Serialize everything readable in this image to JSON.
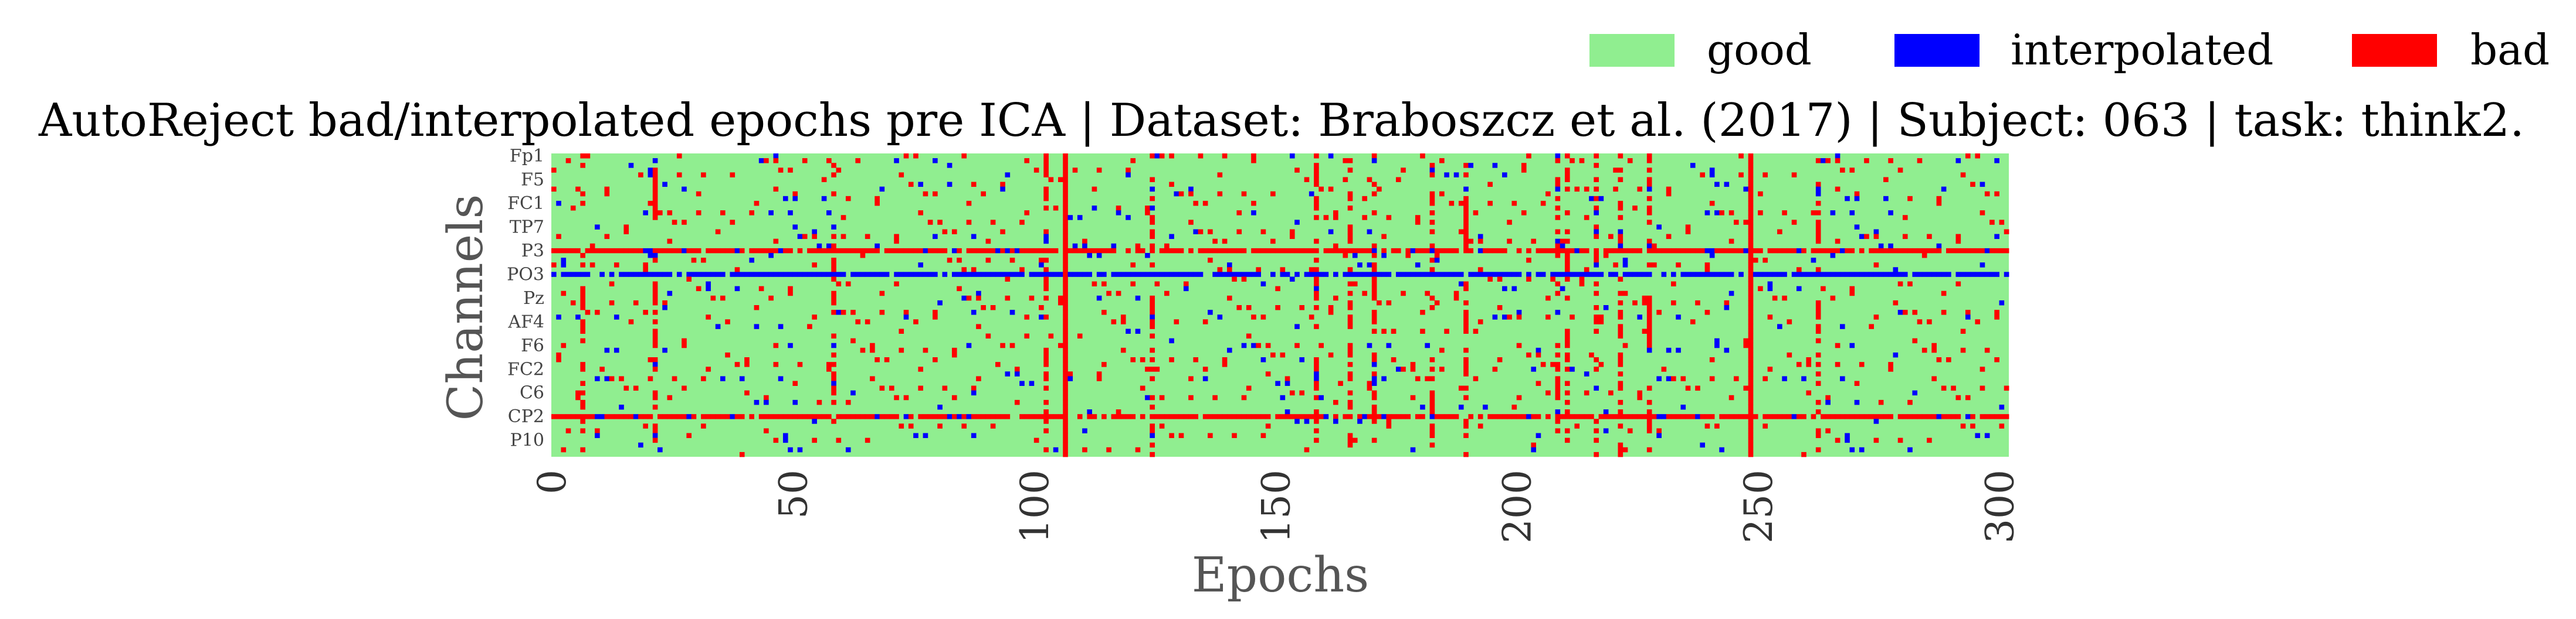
{
  "chart_data": {
    "type": "heatmap",
    "title": "AutoReject bad/interpolated epochs pre ICA | Dataset: Braboszcz et al. (2017) | Subject: 063 | task: think2.",
    "xlabel": "Epochs",
    "ylabel": "Channels",
    "xlim": [
      0,
      302
    ],
    "n_epochs": 302,
    "x_ticks": [
      0,
      50,
      100,
      150,
      200,
      250,
      300
    ],
    "channel_tick_labels": [
      "Fp1",
      "F5",
      "FC1",
      "TP7",
      "P3",
      "PO3",
      "Pz",
      "AF4",
      "F6",
      "FC2",
      "C6",
      "CP2",
      "P10"
    ],
    "n_channels": 64,
    "legend": [
      {
        "name": "good",
        "color": "#90EE90"
      },
      {
        "name": "interpolated",
        "color": "#0000FF"
      },
      {
        "name": "bad",
        "color": "#FF0000"
      }
    ],
    "legend_position": "top-right",
    "grid": false,
    "fully_bad_epochs": [
      106,
      248
    ],
    "mostly_bad_channels": [
      "P3",
      "CP2"
    ],
    "mostly_interpolated_channels": [
      "PO3"
    ]
  }
}
